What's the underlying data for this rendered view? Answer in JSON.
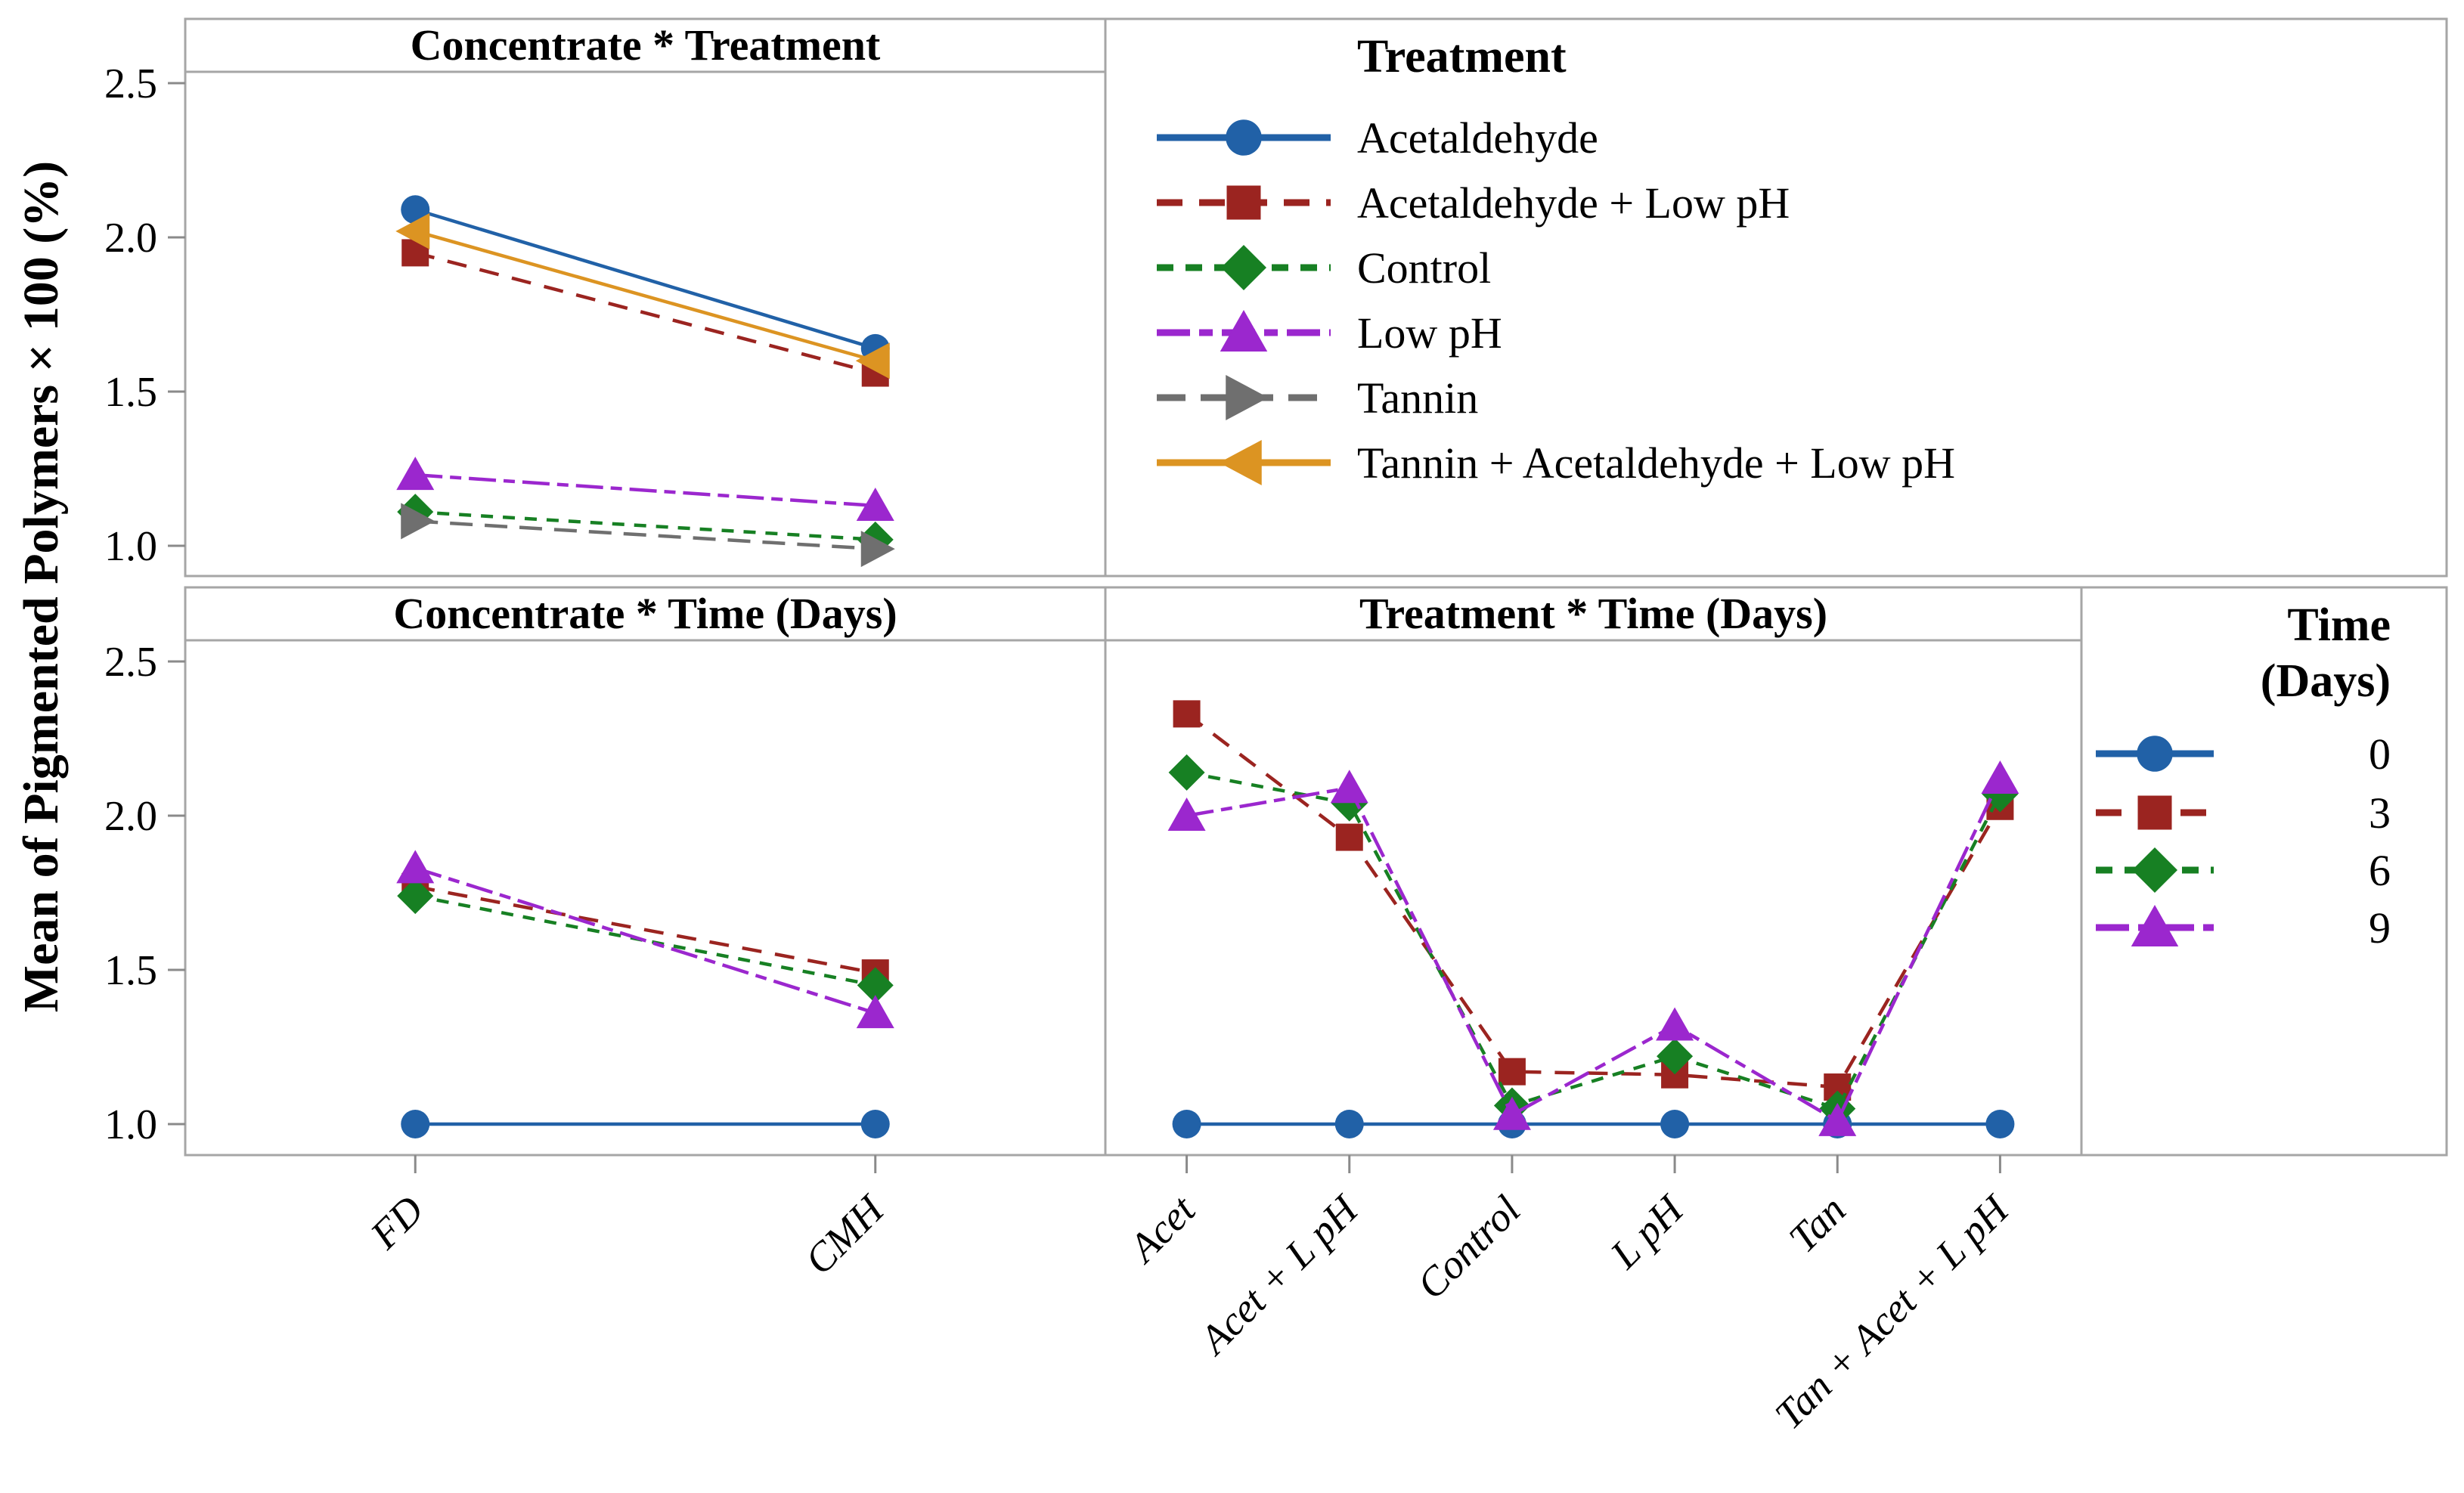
{
  "figure": {
    "ylabel": "Mean of Pigmented Polymers × 100 (%)",
    "border_color": "#a6a6a6",
    "tick_color": "#8a8a8a",
    "y_tick_labels": [
      "2.5",
      "2.0",
      "1.5",
      "1.0"
    ]
  },
  "legend_treatment": {
    "title": "Treatment"
  },
  "legend_time": {
    "title_line1": "Time",
    "title_line2": "(Days)",
    "entries": [
      "0",
      "3",
      "6",
      "9"
    ]
  },
  "chart_data": [
    {
      "type": "line",
      "title": "Concentrate * Treatment",
      "xlabel": "",
      "ylabel": "Mean of Pigmented Polymers × 100 (%)",
      "categories": [
        "FD",
        "CMH"
      ],
      "ylim": [
        0.85,
        2.62
      ],
      "yticks": [
        2.5,
        2.0,
        1.5,
        1.0
      ],
      "grid": false,
      "legend_position": "right-top-box",
      "series": [
        {
          "name": "Acetaldehyde",
          "color": "#2161a7",
          "marker": "circle",
          "dash": "solid",
          "values": [
            2.09,
            1.64
          ]
        },
        {
          "name": "Acetaldehyde + Low pH",
          "color": "#9b2420",
          "marker": "square",
          "dash": "dash",
          "values": [
            1.95,
            1.56
          ]
        },
        {
          "name": "Control",
          "color": "#178023",
          "marker": "diamond",
          "dash": "shortdash",
          "values": [
            1.11,
            1.02
          ]
        },
        {
          "name": "Low pH",
          "color": "#9b27ce",
          "marker": "triangle-up",
          "dash": "dashdot",
          "values": [
            1.23,
            1.13
          ]
        },
        {
          "name": "Tannin",
          "color": "#6f6f6f",
          "marker": "triangle-right",
          "dash": "longdash",
          "values": [
            1.08,
            0.99
          ]
        },
        {
          "name": "Tannin + Acetaldehyde + Low pH",
          "color": "#dc9422",
          "marker": "triangle-left",
          "dash": "solid",
          "values": [
            2.02,
            1.6
          ]
        }
      ]
    },
    {
      "type": "line",
      "title": "Concentrate * Time (Days)",
      "xlabel": "",
      "categories": [
        "FD",
        "CMH"
      ],
      "ylim": [
        0.85,
        2.62
      ],
      "yticks": [
        2.5,
        2.0,
        1.5,
        1.0
      ],
      "grid": false,
      "series": [
        {
          "name": "0",
          "color": "#2161a7",
          "marker": "circle",
          "dash": "solid",
          "values": [
            1.0,
            1.0
          ]
        },
        {
          "name": "3",
          "color": "#9b2420",
          "marker": "square",
          "dash": "dash",
          "values": [
            1.77,
            1.49
          ]
        },
        {
          "name": "6",
          "color": "#178023",
          "marker": "diamond",
          "dash": "shortdash",
          "values": [
            1.74,
            1.45
          ]
        },
        {
          "name": "9",
          "color": "#9b27ce",
          "marker": "triangle-up",
          "dash": "dashdot",
          "values": [
            1.83,
            1.36
          ]
        }
      ]
    },
    {
      "type": "line",
      "title": "Treatment * Time (Days)",
      "xlabel": "",
      "categories": [
        "Acet",
        "Acet + L pH",
        "Control",
        "L pH",
        "Tan",
        "Tan + Acet + L pH"
      ],
      "ylim": [
        0.85,
        2.62
      ],
      "yticks": [
        2.5,
        2.0,
        1.5,
        1.0
      ],
      "grid": false,
      "legend_position": "right-bottom-box",
      "series": [
        {
          "name": "0",
          "color": "#2161a7",
          "marker": "circle",
          "dash": "solid",
          "values": [
            1.0,
            1.0,
            1.0,
            1.0,
            1.0,
            1.0
          ]
        },
        {
          "name": "3",
          "color": "#9b2420",
          "marker": "square",
          "dash": "dash",
          "values": [
            2.33,
            1.93,
            1.17,
            1.16,
            1.12,
            2.03
          ]
        },
        {
          "name": "6",
          "color": "#178023",
          "marker": "diamond",
          "dash": "shortdash",
          "values": [
            2.14,
            2.04,
            1.06,
            1.22,
            1.05,
            2.07
          ]
        },
        {
          "name": "9",
          "color": "#9b27ce",
          "marker": "triangle-up",
          "dash": "dashdot",
          "values": [
            2.0,
            2.09,
            1.03,
            1.32,
            1.01,
            2.12
          ]
        }
      ]
    }
  ]
}
